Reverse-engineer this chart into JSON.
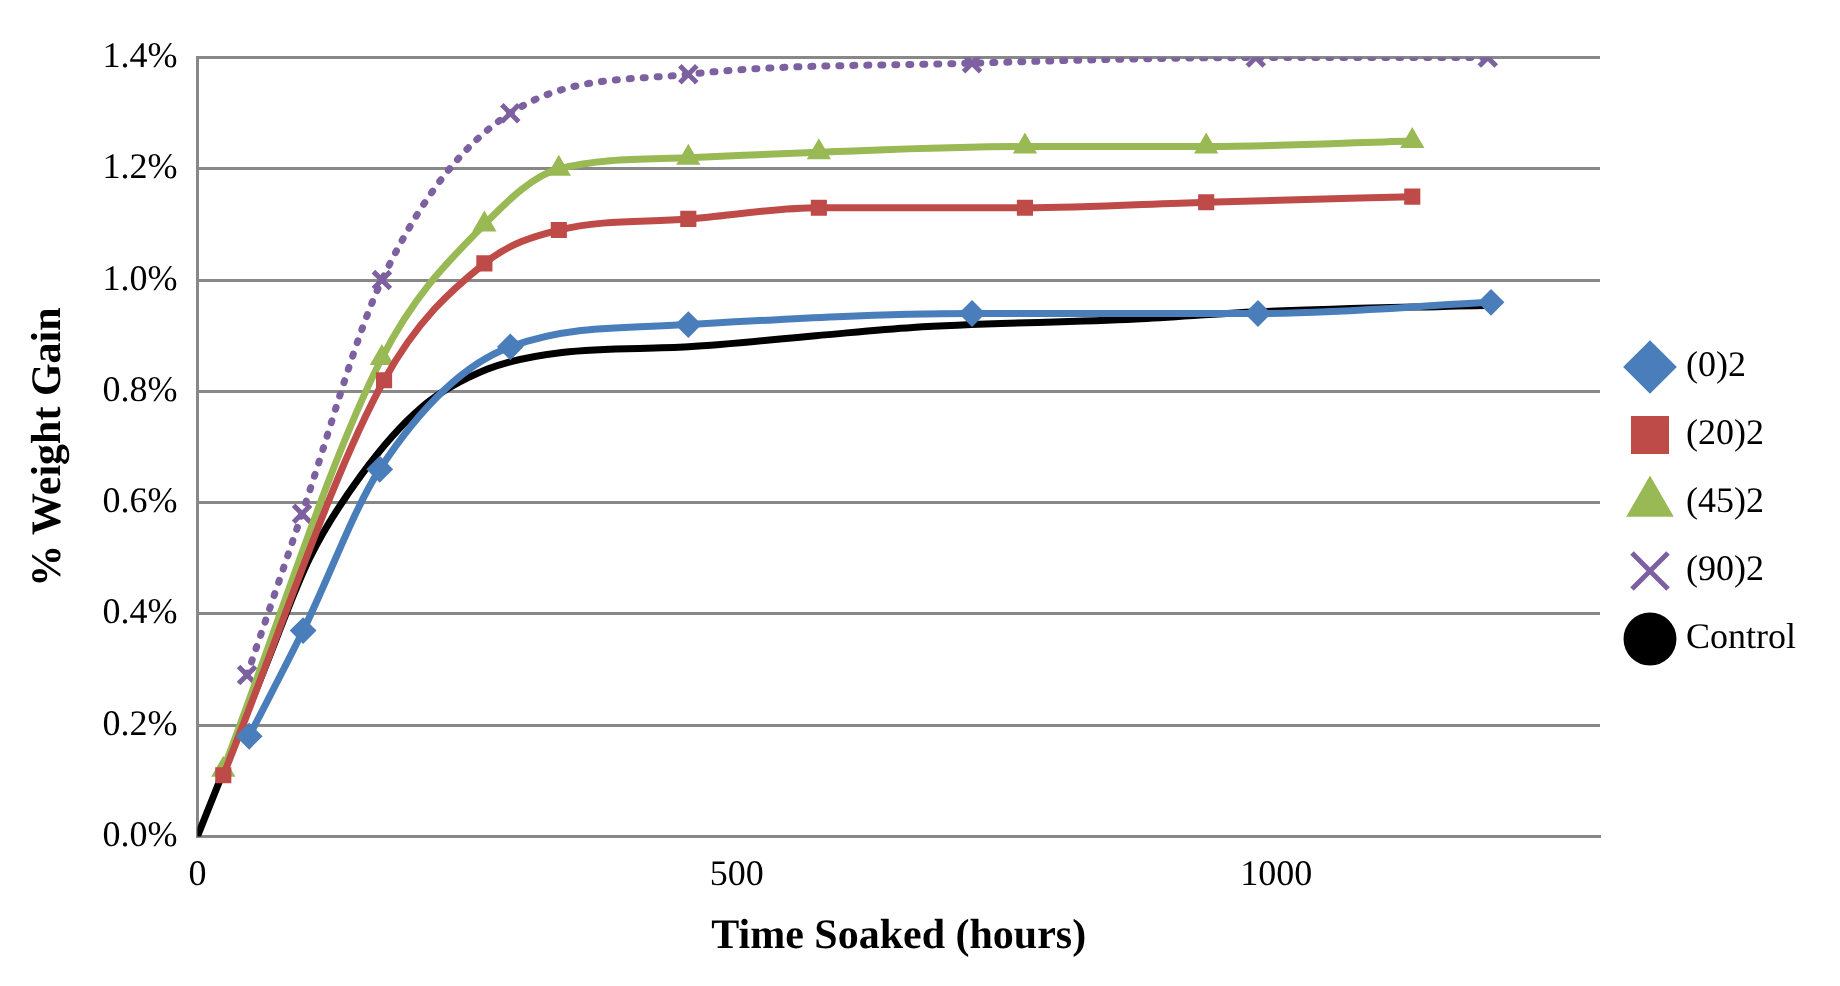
{
  "chart_data": {
    "type": "line",
    "xlabel": "Time Soaked (hours)",
    "ylabel": "% Weight Gain",
    "xlim": [
      0,
      1300
    ],
    "xticks": [
      0,
      500,
      1000
    ],
    "ylim": [
      0,
      1.4
    ],
    "yticks": [
      {
        "value": 0,
        "label": "0.0%"
      },
      {
        "value": 0.2,
        "label": "0.2%"
      },
      {
        "value": 0.4,
        "label": "0.4%"
      },
      {
        "value": 0.6,
        "label": "0.6%"
      },
      {
        "value": 0.8,
        "label": "0.8%"
      },
      {
        "value": 1.0,
        "label": "1.0%"
      },
      {
        "value": 1.2,
        "label": "1.2%"
      },
      {
        "value": 1.4,
        "label": "1.4%"
      }
    ],
    "grid": "y",
    "legend": "right",
    "series": [
      {
        "name": "(0)2",
        "color": "#4a7ebb",
        "marker": "diamond",
        "line_style": "solid",
        "x": [
          48,
          98,
          169,
          290,
          455,
          718,
          983,
          1199
        ],
        "values": [
          0.18,
          0.37,
          0.66,
          0.88,
          0.92,
          0.94,
          0.94,
          0.96
        ]
      },
      {
        "name": "(20)2",
        "color": "#be4b48",
        "marker": "square",
        "line_style": "solid",
        "x": [
          24,
          173,
          266,
          335,
          455,
          576,
          767,
          935,
          1126
        ],
        "values": [
          0.11,
          0.82,
          1.03,
          1.09,
          1.11,
          1.13,
          1.13,
          1.14,
          1.15
        ]
      },
      {
        "name": "(45)2",
        "color": "#98b954",
        "marker": "triangle",
        "line_style": "solid",
        "x": [
          24,
          171,
          266,
          335,
          455,
          576,
          767,
          935,
          1126
        ],
        "values": [
          0.12,
          0.86,
          1.1,
          1.2,
          1.22,
          1.23,
          1.24,
          1.24,
          1.25
        ]
      },
      {
        "name": "(90)2",
        "color": "#7d60a0",
        "marker": "cross",
        "line_style": "dotted",
        "x": [
          46,
          97,
          171,
          290,
          455,
          718,
          981,
          1196
        ],
        "values": [
          0.29,
          0.58,
          1.0,
          1.3,
          1.37,
          1.39,
          1.4,
          1.4
        ]
      },
      {
        "name": "Control",
        "color": "#000000",
        "marker": "none",
        "line_style": "solid",
        "x": [
          0,
          62,
          104,
          152,
          207,
          269,
          338,
          455,
          573,
          663,
          870,
          983,
          1199
        ],
        "values": [
          0,
          0.3,
          0.5,
          0.65,
          0.77,
          0.84,
          0.87,
          0.88,
          0.9,
          0.915,
          0.93,
          0.943,
          0.955
        ]
      }
    ]
  }
}
